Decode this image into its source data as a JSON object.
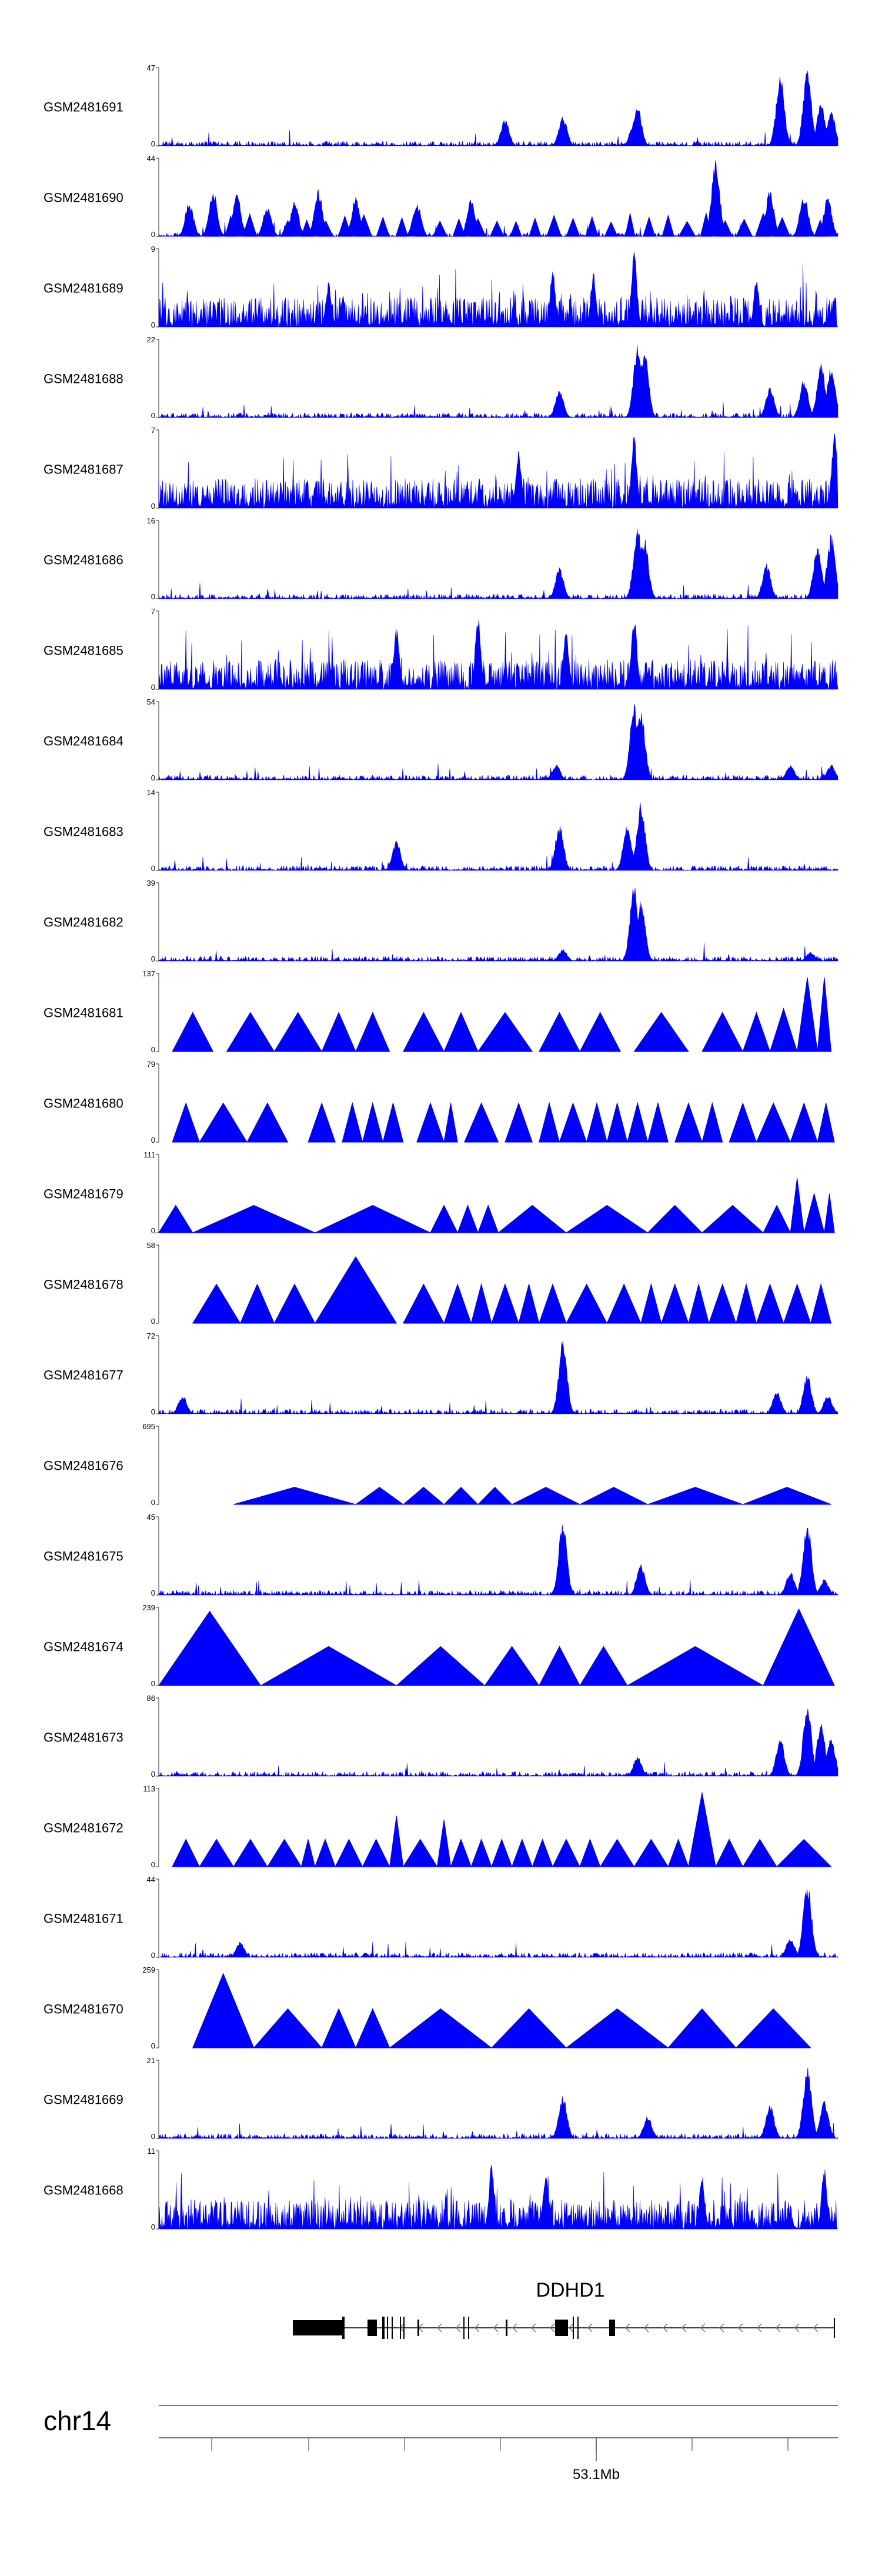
{
  "chart_data": {
    "type": "area",
    "color": "#0000ff",
    "chromosome": "chr14",
    "gene": {
      "name": "DDHD1",
      "strand": "-"
    },
    "axis": {
      "tick_label": "53.1Mb"
    },
    "tracks": [
      {
        "name": "GSM2481691",
        "ymax": "47",
        "ymin": "0",
        "style": "spiky",
        "peaks": [
          [
            0.51,
            0.35
          ],
          [
            0.595,
            0.38
          ],
          [
            0.7,
            0.32
          ],
          [
            0.705,
            0.5
          ],
          [
            0.915,
            0.9
          ],
          [
            0.955,
            0.97
          ],
          [
            0.975,
            0.55
          ],
          [
            0.99,
            0.45
          ]
        ]
      },
      {
        "name": "GSM2481690",
        "ymax": "44",
        "ymin": "0",
        "style": "mixed",
        "peaks": [
          [
            0.045,
            0.45
          ],
          [
            0.08,
            0.6
          ],
          [
            0.115,
            0.55
          ],
          [
            0.16,
            0.4
          ],
          [
            0.2,
            0.45
          ],
          [
            0.235,
            0.6
          ],
          [
            0.29,
            0.5
          ],
          [
            0.38,
            0.45
          ],
          [
            0.46,
            0.5
          ],
          [
            0.82,
            1.0
          ],
          [
            0.9,
            0.6
          ],
          [
            0.95,
            0.55
          ],
          [
            0.985,
            0.5
          ]
        ]
      },
      {
        "name": "GSM2481689",
        "ymax": "9",
        "ymin": "0",
        "style": "dense",
        "peaks": [
          [
            0.7,
            1.0
          ],
          [
            0.64,
            0.7
          ],
          [
            0.58,
            0.75
          ],
          [
            0.25,
            0.6
          ],
          [
            0.88,
            0.6
          ]
        ]
      },
      {
        "name": "GSM2481688",
        "ymax": "22",
        "ymin": "0",
        "style": "spiky",
        "peaks": [
          [
            0.59,
            0.35
          ],
          [
            0.705,
            0.95
          ],
          [
            0.715,
            0.9
          ],
          [
            0.9,
            0.4
          ],
          [
            0.95,
            0.5
          ],
          [
            0.975,
            0.7
          ],
          [
            0.99,
            0.65
          ]
        ]
      },
      {
        "name": "GSM2481687",
        "ymax": "7",
        "ymin": "0",
        "style": "dense",
        "peaks": [
          [
            0.7,
            0.95
          ],
          [
            0.995,
            1.0
          ],
          [
            0.53,
            0.75
          ]
        ]
      },
      {
        "name": "GSM2481686",
        "ymax": "16",
        "ymin": "0",
        "style": "spiky",
        "peaks": [
          [
            0.59,
            0.4
          ],
          [
            0.705,
            0.95
          ],
          [
            0.715,
            0.8
          ],
          [
            0.895,
            0.45
          ],
          [
            0.97,
            0.7
          ],
          [
            0.99,
            0.85
          ]
        ]
      },
      {
        "name": "GSM2481685",
        "ymax": "7",
        "ymin": "0",
        "style": "dense",
        "peaks": [
          [
            0.47,
            1.0
          ],
          [
            0.7,
            0.95
          ],
          [
            0.6,
            0.75
          ],
          [
            0.35,
            0.8
          ]
        ]
      },
      {
        "name": "GSM2481684",
        "ymax": "54",
        "ymin": "0",
        "style": "spiky",
        "peaks": [
          [
            0.585,
            0.2
          ],
          [
            0.7,
            0.98
          ],
          [
            0.71,
            0.9
          ],
          [
            0.93,
            0.2
          ],
          [
            0.99,
            0.2
          ]
        ]
      },
      {
        "name": "GSM2481683",
        "ymax": "14",
        "ymin": "0",
        "style": "spiky",
        "peaks": [
          [
            0.59,
            0.6
          ],
          [
            0.71,
            0.9
          ],
          [
            0.69,
            0.6
          ],
          [
            0.35,
            0.4
          ]
        ]
      },
      {
        "name": "GSM2481682",
        "ymax": "39",
        "ymin": "0",
        "style": "spiky",
        "peaks": [
          [
            0.595,
            0.15
          ],
          [
            0.7,
            1.0
          ],
          [
            0.71,
            0.8
          ],
          [
            0.96,
            0.12
          ]
        ]
      },
      {
        "name": "GSM2481681",
        "ymax": "137",
        "ymin": "0",
        "style": "triangles",
        "peaks": [
          [
            0.02,
            0.08,
            0.5
          ],
          [
            0.1,
            0.17,
            0.5
          ],
          [
            0.17,
            0.24,
            0.5
          ],
          [
            0.24,
            0.29,
            0.5
          ],
          [
            0.29,
            0.34,
            0.5
          ],
          [
            0.36,
            0.42,
            0.5
          ],
          [
            0.42,
            0.47,
            0.5
          ],
          [
            0.47,
            0.55,
            0.5
          ],
          [
            0.56,
            0.62,
            0.5
          ],
          [
            0.62,
            0.68,
            0.5
          ],
          [
            0.7,
            0.78,
            0.5
          ],
          [
            0.8,
            0.86,
            0.5
          ],
          [
            0.86,
            0.9,
            0.5
          ],
          [
            0.9,
            0.94,
            0.55
          ],
          [
            0.94,
            0.97,
            0.95
          ],
          [
            0.97,
            0.99,
            0.95
          ]
        ]
      },
      {
        "name": "GSM2481680",
        "ymax": "79",
        "ymin": "0",
        "style": "triangles",
        "peaks": [
          [
            0.02,
            0.06,
            0.5
          ],
          [
            0.06,
            0.13,
            0.5
          ],
          [
            0.13,
            0.19,
            0.5
          ],
          [
            0.22,
            0.26,
            0.5
          ],
          [
            0.27,
            0.3,
            0.5
          ],
          [
            0.3,
            0.33,
            0.5
          ],
          [
            0.33,
            0.36,
            0.5
          ],
          [
            0.38,
            0.42,
            0.5
          ],
          [
            0.42,
            0.44,
            0.5
          ],
          [
            0.45,
            0.5,
            0.5
          ],
          [
            0.51,
            0.55,
            0.5
          ],
          [
            0.56,
            0.59,
            0.5
          ],
          [
            0.59,
            0.63,
            0.5
          ],
          [
            0.63,
            0.66,
            0.5
          ],
          [
            0.66,
            0.69,
            0.5
          ],
          [
            0.69,
            0.72,
            0.5
          ],
          [
            0.72,
            0.75,
            0.5
          ],
          [
            0.76,
            0.8,
            0.5
          ],
          [
            0.8,
            0.83,
            0.5
          ],
          [
            0.84,
            0.88,
            0.5
          ],
          [
            0.88,
            0.93,
            0.5
          ],
          [
            0.93,
            0.97,
            0.5
          ],
          [
            0.97,
            0.995,
            0.5
          ]
        ]
      },
      {
        "name": "GSM2481679",
        "ymax": "111",
        "ymin": "0",
        "style": "triangles",
        "peaks": [
          [
            0.0,
            0.05,
            0.35
          ],
          [
            0.05,
            0.23,
            0.35
          ],
          [
            0.23,
            0.4,
            0.35
          ],
          [
            0.4,
            0.44,
            0.35
          ],
          [
            0.44,
            0.47,
            0.35
          ],
          [
            0.47,
            0.5,
            0.35
          ],
          [
            0.5,
            0.6,
            0.35
          ],
          [
            0.6,
            0.72,
            0.35
          ],
          [
            0.72,
            0.8,
            0.35
          ],
          [
            0.8,
            0.89,
            0.35
          ],
          [
            0.89,
            0.93,
            0.35
          ],
          [
            0.93,
            0.95,
            0.7
          ],
          [
            0.95,
            0.98,
            0.5
          ],
          [
            0.98,
            0.995,
            0.5
          ]
        ]
      },
      {
        "name": "GSM2481678",
        "ymax": "58",
        "ymin": "0",
        "style": "triangles",
        "peaks": [
          [
            0.05,
            0.12,
            0.5
          ],
          [
            0.12,
            0.17,
            0.5
          ],
          [
            0.17,
            0.23,
            0.5
          ],
          [
            0.23,
            0.35,
            0.85
          ],
          [
            0.36,
            0.42,
            0.5
          ],
          [
            0.42,
            0.46,
            0.5
          ],
          [
            0.46,
            0.49,
            0.5
          ],
          [
            0.49,
            0.53,
            0.5
          ],
          [
            0.53,
            0.56,
            0.5
          ],
          [
            0.56,
            0.6,
            0.5
          ],
          [
            0.6,
            0.66,
            0.5
          ],
          [
            0.66,
            0.71,
            0.5
          ],
          [
            0.71,
            0.74,
            0.5
          ],
          [
            0.74,
            0.78,
            0.5
          ],
          [
            0.78,
            0.81,
            0.5
          ],
          [
            0.81,
            0.85,
            0.5
          ],
          [
            0.85,
            0.88,
            0.5
          ],
          [
            0.88,
            0.92,
            0.5
          ],
          [
            0.92,
            0.96,
            0.5
          ],
          [
            0.96,
            0.99,
            0.5
          ]
        ]
      },
      {
        "name": "GSM2481677",
        "ymax": "72",
        "ymin": "0",
        "style": "spiky",
        "peaks": [
          [
            0.035,
            0.25
          ],
          [
            0.595,
            0.98
          ],
          [
            0.91,
            0.3
          ],
          [
            0.955,
            0.5
          ],
          [
            0.985,
            0.25
          ]
        ]
      },
      {
        "name": "GSM2481676",
        "ymax": "695",
        "ymin": "0",
        "style": "triangles",
        "peaks": [
          [
            0.11,
            0.29,
            0.22
          ],
          [
            0.29,
            0.36,
            0.22
          ],
          [
            0.36,
            0.42,
            0.22
          ],
          [
            0.42,
            0.47,
            0.22
          ],
          [
            0.47,
            0.52,
            0.22
          ],
          [
            0.52,
            0.62,
            0.22
          ],
          [
            0.62,
            0.72,
            0.22
          ],
          [
            0.72,
            0.86,
            0.22
          ],
          [
            0.86,
            0.99,
            0.22
          ]
        ]
      },
      {
        "name": "GSM2481675",
        "ymax": "45",
        "ymin": "0",
        "style": "spiky",
        "peaks": [
          [
            0.595,
            0.95
          ],
          [
            0.71,
            0.4
          ],
          [
            0.93,
            0.3
          ],
          [
            0.955,
            0.98
          ],
          [
            0.98,
            0.2
          ]
        ]
      },
      {
        "name": "GSM2481674",
        "ymax": "239",
        "ymin": "0",
        "style": "triangles",
        "peaks": [
          [
            0.0,
            0.15,
            0.95
          ],
          [
            0.15,
            0.35,
            0.5
          ],
          [
            0.35,
            0.48,
            0.5
          ],
          [
            0.48,
            0.56,
            0.5
          ],
          [
            0.56,
            0.62,
            0.5
          ],
          [
            0.62,
            0.69,
            0.5
          ],
          [
            0.69,
            0.89,
            0.5
          ],
          [
            0.89,
            0.995,
            0.98
          ]
        ]
      },
      {
        "name": "GSM2481673",
        "ymax": "86",
        "ymin": "0",
        "style": "spiky",
        "peaks": [
          [
            0.705,
            0.25
          ],
          [
            0.915,
            0.5
          ],
          [
            0.955,
            0.95
          ],
          [
            0.975,
            0.7
          ],
          [
            0.99,
            0.5
          ]
        ]
      },
      {
        "name": "GSM2481672",
        "ymax": "113",
        "ymin": "0",
        "style": "triangles",
        "peaks": [
          [
            0.02,
            0.06,
            0.35
          ],
          [
            0.06,
            0.11,
            0.35
          ],
          [
            0.11,
            0.16,
            0.35
          ],
          [
            0.16,
            0.21,
            0.35
          ],
          [
            0.21,
            0.23,
            0.35
          ],
          [
            0.23,
            0.26,
            0.35
          ],
          [
            0.26,
            0.3,
            0.35
          ],
          [
            0.3,
            0.34,
            0.35
          ],
          [
            0.34,
            0.36,
            0.65
          ],
          [
            0.36,
            0.41,
            0.35
          ],
          [
            0.41,
            0.43,
            0.6
          ],
          [
            0.43,
            0.46,
            0.35
          ],
          [
            0.46,
            0.49,
            0.35
          ],
          [
            0.49,
            0.52,
            0.35
          ],
          [
            0.52,
            0.55,
            0.35
          ],
          [
            0.55,
            0.58,
            0.35
          ],
          [
            0.58,
            0.62,
            0.35
          ],
          [
            0.62,
            0.65,
            0.35
          ],
          [
            0.65,
            0.7,
            0.35
          ],
          [
            0.7,
            0.75,
            0.35
          ],
          [
            0.75,
            0.78,
            0.35
          ],
          [
            0.78,
            0.82,
            0.95
          ],
          [
            0.82,
            0.86,
            0.35
          ],
          [
            0.86,
            0.91,
            0.35
          ],
          [
            0.91,
            0.99,
            0.35
          ]
        ]
      },
      {
        "name": "GSM2481671",
        "ymax": "44",
        "ymin": "0",
        "style": "spiky",
        "peaks": [
          [
            0.955,
            1.0
          ],
          [
            0.93,
            0.25
          ],
          [
            0.12,
            0.2
          ]
        ]
      },
      {
        "name": "GSM2481670",
        "ymax": "259",
        "ymin": "0",
        "style": "triangles",
        "peaks": [
          [
            0.05,
            0.14,
            0.95
          ],
          [
            0.14,
            0.24,
            0.5
          ],
          [
            0.24,
            0.29,
            0.5
          ],
          [
            0.29,
            0.34,
            0.5
          ],
          [
            0.34,
            0.49,
            0.5
          ],
          [
            0.49,
            0.6,
            0.5
          ],
          [
            0.6,
            0.75,
            0.5
          ],
          [
            0.75,
            0.85,
            0.5
          ],
          [
            0.85,
            0.96,
            0.5
          ]
        ]
      },
      {
        "name": "GSM2481669",
        "ymax": "21",
        "ymin": "0",
        "style": "spiky",
        "peaks": [
          [
            0.595,
            0.55
          ],
          [
            0.72,
            0.3
          ],
          [
            0.9,
            0.45
          ],
          [
            0.955,
            0.97
          ],
          [
            0.98,
            0.5
          ]
        ]
      },
      {
        "name": "GSM2481668",
        "ymax": "11",
        "ymin": "0",
        "style": "dense",
        "peaks": [
          [
            0.49,
            0.85
          ],
          [
            0.57,
            0.75
          ],
          [
            0.8,
            0.7
          ],
          [
            0.98,
            0.8
          ]
        ]
      }
    ]
  }
}
